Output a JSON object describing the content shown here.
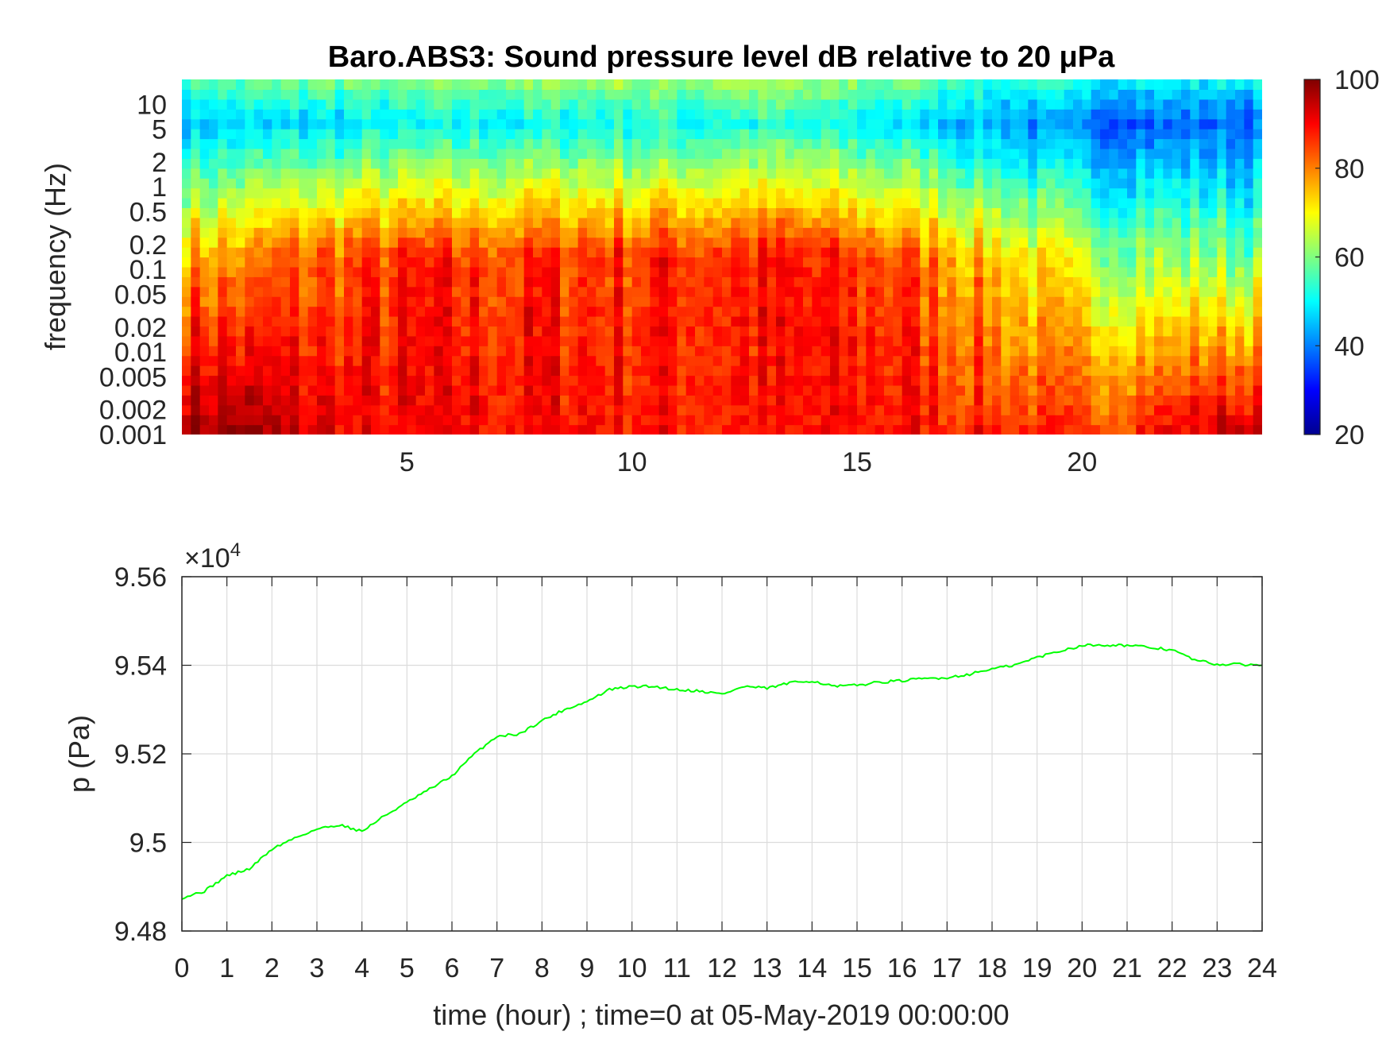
{
  "chart_data": [
    {
      "type": "heatmap",
      "title": "Baro.ABS3: Sound pressure level dB relative to 20 μPa",
      "xlabel": "",
      "ylabel": "frequency (Hz)",
      "xlim": [
        0,
        24
      ],
      "x_ticks": [
        "5",
        "10",
        "15",
        "20"
      ],
      "y_scale": "log",
      "ylim": [
        0.001,
        20
      ],
      "y_ticks": [
        "0.001",
        "0.002",
        "0.005",
        "0.01",
        "0.02",
        "0.05",
        "0.1",
        "0.2",
        "0.5",
        "1",
        "2",
        "5",
        "10"
      ],
      "colorbar": {
        "range": [
          20,
          100
        ],
        "ticks": [
          "20",
          "40",
          "60",
          "80",
          "100"
        ],
        "colormap": "jet"
      },
      "description_profile": [
        {
          "time_hour": 1,
          "low_freq_db": 98,
          "mid_freq_db": 78,
          "high_freq_db": 45
        },
        {
          "time_hour": 4,
          "low_freq_db": 90,
          "mid_freq_db": 85,
          "high_freq_db": 48
        },
        {
          "time_hour": 8,
          "low_freq_db": 90,
          "mid_freq_db": 86,
          "high_freq_db": 50
        },
        {
          "time_hour": 13,
          "low_freq_db": 88,
          "mid_freq_db": 88,
          "high_freq_db": 52
        },
        {
          "time_hour": 16,
          "low_freq_db": 90,
          "mid_freq_db": 84,
          "high_freq_db": 48
        },
        {
          "time_hour": 20,
          "low_freq_db": 85,
          "mid_freq_db": 65,
          "high_freq_db": 38
        },
        {
          "time_hour": 23.5,
          "low_freq_db": 96,
          "mid_freq_db": 60,
          "high_freq_db": 38
        }
      ]
    },
    {
      "type": "line",
      "title": "",
      "xlabel": "time (hour) ; time=0 at 05-May-2019 00:00:00",
      "ylabel": "p (Pa)",
      "exponent_label": "×10",
      "exponent_power": "4",
      "xlim": [
        0,
        24
      ],
      "ylim": [
        94800,
        95600
      ],
      "x_ticks": [
        "0",
        "1",
        "2",
        "3",
        "4",
        "5",
        "6",
        "7",
        "8",
        "9",
        "10",
        "11",
        "12",
        "13",
        "14",
        "15",
        "16",
        "17",
        "18",
        "19",
        "20",
        "21",
        "22",
        "23",
        "24"
      ],
      "y_ticks": [
        "9.48",
        "9.5",
        "9.52",
        "9.54",
        "9.56"
      ],
      "grid": true,
      "line_color": "#00ff00",
      "series": [
        {
          "x": [
            0,
            0.5,
            1,
            1.5,
            2,
            2.5,
            3,
            3.5,
            4,
            4.5,
            5,
            5.5,
            6,
            6.5,
            7,
            7.5,
            8,
            8.5,
            9,
            9.5,
            10,
            10.5,
            11,
            11.5,
            12,
            12.5,
            13,
            13.5,
            14,
            14.5,
            15,
            15.5,
            16,
            16.5,
            17,
            17.5,
            18,
            18.5,
            19,
            19.5,
            20,
            20.5,
            21,
            21.5,
            22,
            22.5,
            23,
            23.5,
            24
          ],
          "y": [
            94875,
            94890,
            94925,
            94940,
            94985,
            95010,
            95030,
            95040,
            95025,
            95060,
            95090,
            95120,
            95150,
            95200,
            95240,
            95245,
            95275,
            95300,
            95318,
            95345,
            95352,
            95352,
            95345,
            95342,
            95335,
            95352,
            95348,
            95360,
            95365,
            95352,
            95355,
            95362,
            95365,
            95370,
            95372,
            95380,
            95392,
            95400,
            95418,
            95432,
            95445,
            95446,
            95445,
            95440,
            95435,
            95412,
            95402,
            95402,
            95400
          ]
        }
      ]
    }
  ]
}
